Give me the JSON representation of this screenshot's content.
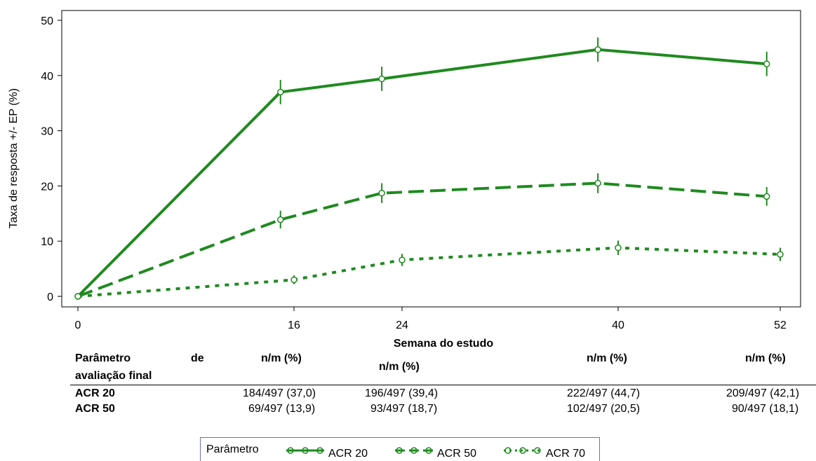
{
  "chart_data": {
    "type": "line",
    "xlabel": "Semana do estudo",
    "ylabel": "Taxa de resposta +/- EP (%)",
    "xticks": [
      0,
      16,
      24,
      40,
      52
    ],
    "yticks": [
      0,
      10,
      20,
      30,
      40,
      50
    ],
    "xlim": [
      0,
      52
    ],
    "ylim": [
      0,
      50
    ],
    "grid": false,
    "color": "#1f8a1f",
    "series": [
      {
        "name": "ACR 20",
        "style": "solid",
        "points": [
          {
            "x": 0,
            "y": 0,
            "err": 0
          },
          {
            "x": 15,
            "y": 37.0,
            "err": 2.2
          },
          {
            "x": 22.5,
            "y": 39.4,
            "err": 2.2
          },
          {
            "x": 38.5,
            "y": 44.7,
            "err": 2.2
          },
          {
            "x": 51,
            "y": 42.1,
            "err": 2.2
          }
        ]
      },
      {
        "name": "ACR 50",
        "style": "dashed",
        "points": [
          {
            "x": 0,
            "y": 0,
            "err": 0
          },
          {
            "x": 15,
            "y": 13.9,
            "err": 1.6
          },
          {
            "x": 22.5,
            "y": 18.7,
            "err": 1.8
          },
          {
            "x": 38.5,
            "y": 20.5,
            "err": 1.8
          },
          {
            "x": 51,
            "y": 18.1,
            "err": 1.7
          }
        ]
      },
      {
        "name": "ACR 70",
        "style": "dotted",
        "points": [
          {
            "x": 0,
            "y": 0,
            "err": 0
          },
          {
            "x": 16,
            "y": 3.0,
            "err": 0.8
          },
          {
            "x": 24,
            "y": 6.6,
            "err": 1.1
          },
          {
            "x": 40,
            "y": 8.8,
            "err": 1.3
          },
          {
            "x": 52,
            "y": 7.6,
            "err": 1.2
          }
        ]
      }
    ]
  },
  "table": {
    "header": {
      "param_line1": "Parâmetro",
      "param_de": "de",
      "param_line2": "avaliação final",
      "col_labels": [
        "n/m (%)",
        "n/m (%)",
        "n/m (%)",
        "n/m (%)"
      ]
    },
    "rows": [
      {
        "label": "ACR  20",
        "values": [
          "184/497 (37,0)",
          "196/497 (39,4)",
          "222/497 (44,7)",
          "209/497 (42,1)"
        ]
      },
      {
        "label": "ACR  50",
        "values": [
          "69/497 (13,9)",
          "93/497 (18,7)",
          "102/497 (20,5)",
          "90/497 (18,1)"
        ]
      }
    ]
  },
  "legend": {
    "title": "Parâmetro",
    "items": [
      "ACR 20",
      "ACR 50",
      "ACR 70"
    ]
  }
}
